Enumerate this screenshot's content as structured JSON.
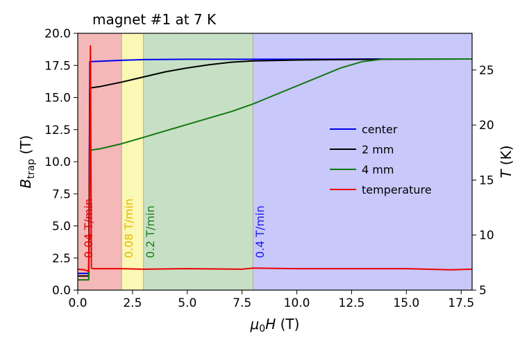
{
  "chart_data": {
    "type": "line",
    "title": "magnet #1 at 7 K",
    "xlabel": "μ0H (T)",
    "ylabel_left": "Btrap (T)",
    "ylabel_right": "T (K)",
    "xlim": [
      0,
      18
    ],
    "ylim_left": [
      0,
      20
    ],
    "ylim_right": [
      5,
      28.333
    ],
    "x_ticks": [
      "0.0",
      "2.5",
      "5.0",
      "7.5",
      "10.0",
      "12.5",
      "15.0",
      "17.5"
    ],
    "y_left_ticks": [
      "0.0",
      "2.5",
      "5.0",
      "7.5",
      "10.0",
      "12.5",
      "15.0",
      "17.5",
      "20.0"
    ],
    "y_right_ticks": [
      "5",
      "10",
      "15",
      "20",
      "25"
    ],
    "grid": false,
    "legend_position": "center-right",
    "regions": [
      {
        "x0": 0,
        "x1": 2,
        "color": "#f4b8b8",
        "label": "0.04 T/min",
        "label_color": "#e00000"
      },
      {
        "x0": 2,
        "x1": 3,
        "color": "#fbf7b5",
        "label": "0.08 T/min",
        "label_color": "#e6b800"
      },
      {
        "x0": 3,
        "x1": 8,
        "color": "#c7e0c5",
        "label": "0.2 T/min",
        "label_color": "#1a7f1a"
      },
      {
        "x0": 8,
        "x1": 18,
        "color": "#c8c8fb",
        "label": "0.4 T/min",
        "label_color": "#1a1aee"
      }
    ],
    "series": [
      {
        "name": "center",
        "color": "#0000ee",
        "axis": "left",
        "x": [
          0.0,
          0.5,
          0.5,
          0.55,
          0.6,
          1.0,
          2.0,
          3.0,
          5.0,
          8.0,
          12.0,
          14.0,
          18.0
        ],
        "y": [
          1.3,
          1.3,
          1.3,
          17.8,
          17.8,
          17.82,
          17.9,
          17.95,
          17.98,
          17.98,
          17.99,
          18.0,
          18.0
        ]
      },
      {
        "name": "2 mm",
        "color": "#000000",
        "axis": "left",
        "x": [
          0.0,
          0.5,
          0.5,
          0.55,
          0.6,
          1.0,
          2.0,
          2.5,
          3.0,
          4.0,
          5.0,
          6.0,
          7.0,
          8.0,
          10.0,
          12.0,
          14.0,
          18.0
        ],
        "y": [
          1.1,
          1.1,
          1.1,
          15.7,
          15.75,
          15.85,
          16.2,
          16.4,
          16.6,
          17.0,
          17.3,
          17.55,
          17.75,
          17.85,
          17.92,
          17.95,
          17.98,
          18.0
        ]
      },
      {
        "name": "4 mm",
        "color": "#117711",
        "axis": "left",
        "x": [
          0.0,
          0.5,
          0.5,
          0.55,
          0.6,
          1.0,
          2.0,
          3.0,
          4.0,
          5.0,
          6.0,
          7.0,
          8.0,
          9.0,
          10.0,
          11.0,
          12.0,
          13.0,
          14.0,
          15.0,
          18.0
        ],
        "y": [
          0.8,
          0.8,
          0.8,
          10.8,
          10.9,
          11.0,
          11.4,
          11.9,
          12.4,
          12.9,
          13.4,
          13.9,
          14.5,
          15.2,
          15.9,
          16.6,
          17.3,
          17.8,
          18.0,
          18.0,
          18.0
        ]
      },
      {
        "name": "temperature",
        "color": "#ee0000",
        "axis": "right",
        "x": [
          0.0,
          0.3,
          0.5,
          0.52,
          0.55,
          0.58,
          0.62,
          0.7,
          2.0,
          3.0,
          5.0,
          7.5,
          8.0,
          10.0,
          12.0,
          15.0,
          17.0,
          18.0
        ],
        "y": [
          6.9,
          6.85,
          6.7,
          10.0,
          20.0,
          27.2,
          7.0,
          6.95,
          6.95,
          6.9,
          6.95,
          6.9,
          7.0,
          6.95,
          6.95,
          6.95,
          6.85,
          6.9
        ]
      }
    ]
  }
}
